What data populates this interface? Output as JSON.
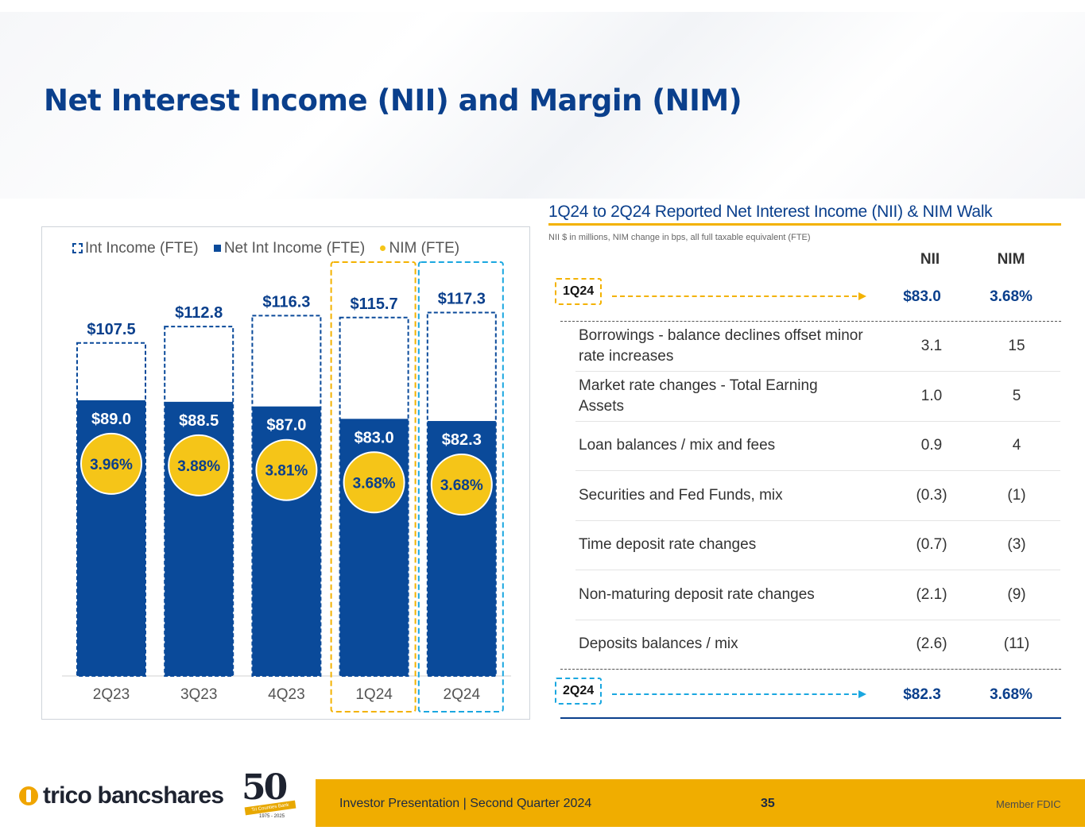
{
  "slide": {
    "title": "Net Interest Income (NII) and Margin (NIM)",
    "footer": {
      "text": "Investor Presentation  |  Second Quarter 2024",
      "page": "35",
      "member": "Member FDIC",
      "logo": "trico bancshares",
      "badge_number": "50",
      "badge_ribbon": "Tri Counties Bank",
      "badge_years": "1975 - 2025"
    },
    "colors": {
      "navy": "#0a4a9a",
      "gold": "#f5c518",
      "highlight_1q24": "#f3b200",
      "highlight_2q24": "#1aa7e0"
    }
  },
  "chart_data": {
    "type": "bar",
    "legend": [
      "Int Income (FTE)",
      "Net Int Income (FTE)",
      "NIM (FTE)"
    ],
    "categories": [
      "2Q23",
      "3Q23",
      "4Q23",
      "1Q24",
      "2Q24"
    ],
    "series": [
      {
        "name": "Int Income (FTE)",
        "values": [
          107.5,
          112.8,
          116.3,
          115.7,
          117.3
        ],
        "labels": [
          "$107.5",
          "$112.8",
          "$116.3",
          "$115.7",
          "$117.3"
        ]
      },
      {
        "name": "Net Int Income (FTE)",
        "values": [
          89.0,
          88.5,
          87.0,
          83.0,
          82.3
        ],
        "labels": [
          "$89.0",
          "$88.5",
          "$87.0",
          "$83.0",
          "$82.3"
        ]
      },
      {
        "name": "NIM (FTE)",
        "values": [
          3.96,
          3.88,
          3.81,
          3.68,
          3.68
        ],
        "labels": [
          "3.96%",
          "3.88%",
          "3.81%",
          "3.68%",
          "3.68%"
        ]
      }
    ],
    "highlighted": [
      "1Q24",
      "2Q24"
    ]
  },
  "walk": {
    "title": "1Q24 to 2Q24 Reported Net Interest Income (NII) & NIM Walk",
    "note": "NII $ in millions, NIM change in bps, all full taxable equivalent (FTE)",
    "col_nii": "NII",
    "col_nim": "NIM",
    "start": {
      "label": "1Q24",
      "nii": "$83.0",
      "nim": "3.68%"
    },
    "rows": [
      {
        "label": "Borrowings - balance declines offset minor rate increases",
        "nii": "3.1",
        "nim": "15"
      },
      {
        "label": "Market rate changes - Total Earning Assets",
        "nii": "1.0",
        "nim": "5"
      },
      {
        "label": "Loan balances / mix and fees",
        "nii": "0.9",
        "nim": "4"
      },
      {
        "label": "Securities and Fed Funds, mix",
        "nii": "(0.3)",
        "nim": "(1)"
      },
      {
        "label": "Time deposit rate changes",
        "nii": "(0.7)",
        "nim": "(3)"
      },
      {
        "label": "Non-maturing deposit rate changes",
        "nii": "(2.1)",
        "nim": "(9)"
      },
      {
        "label": "Deposits balances / mix",
        "nii": "(2.6)",
        "nim": "(11)"
      }
    ],
    "end": {
      "label": "2Q24",
      "nii": "$82.3",
      "nim": "3.68%"
    }
  }
}
